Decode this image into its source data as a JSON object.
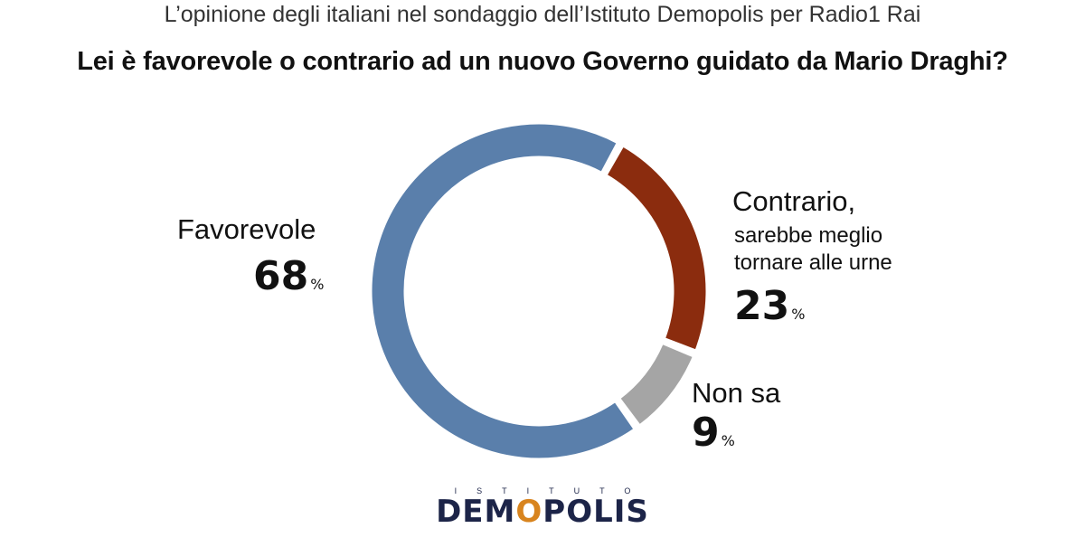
{
  "header": {
    "subtitle": "L’opinione degli italiani nel sondaggio dell’Istituto Demopolis per Radio1 Rai",
    "question": "Lei è favorevole o contrario ad un nuovo Governo guidato da Mario Draghi?"
  },
  "chart_data": {
    "type": "pie",
    "donut": true,
    "title": "Lei è favorevole o contrario ad un nuovo Governo guidato da Mario Draghi?",
    "unit": "%",
    "slices": [
      {
        "label": "Favorevole",
        "sublabel": "",
        "value": 68,
        "color": "#5a7fab"
      },
      {
        "label": "Contrario,",
        "sublabel_lines": [
          "sarebbe meglio",
          "tornare alle urne"
        ],
        "value": 23,
        "color": "#8b2c0e"
      },
      {
        "label": "Non sa",
        "sublabel": "",
        "value": 9,
        "color": "#a5a5a5"
      }
    ]
  },
  "labels": {
    "favorevole": {
      "name": "Favorevole",
      "value": "68",
      "unit": "%"
    },
    "contrario": {
      "name": "Contrario,",
      "line1": "sarebbe meglio",
      "line2": "tornare alle urne",
      "value": "23",
      "unit": "%"
    },
    "nonsa": {
      "name": "Non sa",
      "value": "9",
      "unit": "%"
    }
  },
  "logo": {
    "top": "ISTITUTO",
    "main_pre": "DEM",
    "main_o": "O",
    "main_post": "POLIS"
  }
}
